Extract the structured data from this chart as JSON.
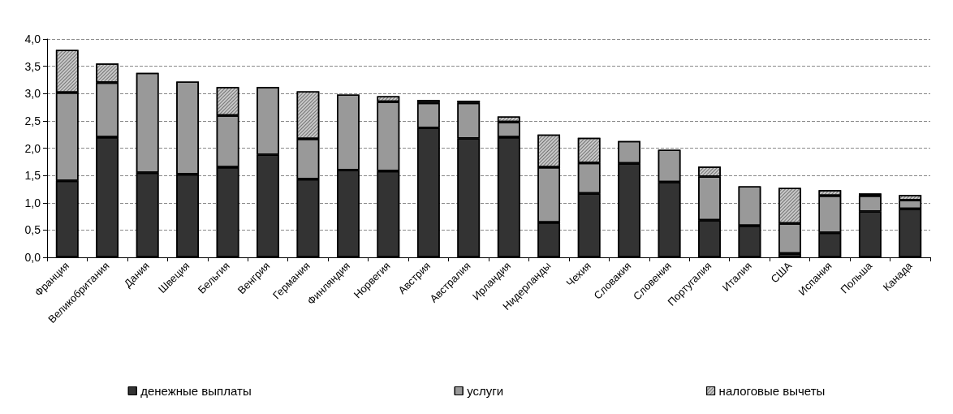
{
  "chart_data": {
    "type": "bar",
    "stacked": true,
    "categories": [
      "Франция",
      "Великобритания",
      "Дания",
      "Швеция",
      "Бельгия",
      "Венгрия",
      "Германия",
      "Финляндия",
      "Норвегия",
      "Австрия",
      "Австралия",
      "Ирландия",
      "Нидерланды",
      "Чехия",
      "Словакия",
      "Словения",
      "Португалия",
      "Италия",
      "США",
      "Испания",
      "Польша",
      "Канада"
    ],
    "series": [
      {
        "name": "денежные выплаты",
        "color": "#333333",
        "values": [
          1.4,
          2.2,
          1.55,
          1.52,
          1.65,
          1.88,
          1.43,
          1.6,
          1.58,
          2.37,
          2.18,
          2.2,
          0.64,
          1.17,
          1.72,
          1.38,
          0.68,
          0.58,
          0.07,
          0.45,
          0.84,
          0.89
        ]
      },
      {
        "name": "услуги",
        "color": "#999999",
        "values": [
          1.62,
          1.0,
          1.83,
          1.7,
          0.95,
          1.24,
          0.74,
          1.38,
          1.27,
          0.46,
          0.65,
          0.28,
          1.01,
          0.56,
          0.41,
          0.59,
          0.8,
          0.72,
          0.55,
          0.68,
          0.29,
          0.16
        ]
      },
      {
        "name": "налоговые вычеты",
        "color": "#c8c8c8",
        "values": [
          0.78,
          0.35,
          0,
          0,
          0.52,
          0,
          0.87,
          0,
          0.1,
          0.05,
          0.04,
          0.1,
          0.6,
          0.46,
          0,
          0,
          0.18,
          0,
          0.65,
          0.1,
          0.04,
          0.09
        ]
      }
    ],
    "ylim": [
      0,
      4
    ],
    "yticks": [
      {
        "value": 0,
        "label": "0,0"
      },
      {
        "value": 0.5,
        "label": "0,5"
      },
      {
        "value": 1,
        "label": "1,0"
      },
      {
        "value": 1.5,
        "label": "1,5"
      },
      {
        "value": 2,
        "label": "2,0"
      },
      {
        "value": 2.5,
        "label": "2,5"
      },
      {
        "value": 3,
        "label": "3,0"
      },
      {
        "value": 3.5,
        "label": "3,5"
      },
      {
        "value": 4,
        "label": "4,0"
      }
    ],
    "grid": "y",
    "legend": "bottom"
  }
}
